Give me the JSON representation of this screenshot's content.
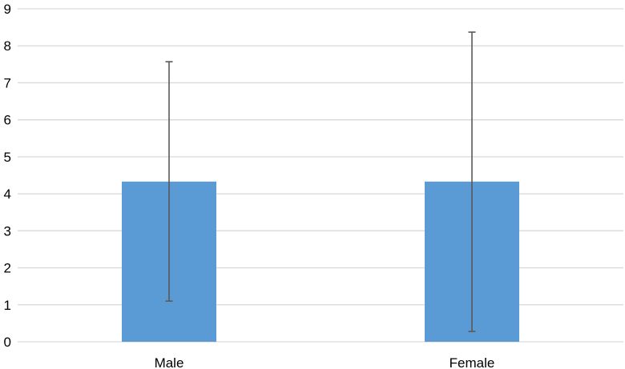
{
  "chart_data": {
    "type": "bar",
    "categories": [
      "Male",
      "Female"
    ],
    "series": [
      {
        "values": [
          4.33,
          4.33
        ],
        "error_low": [
          1.1,
          0.28
        ],
        "error_high": [
          7.57,
          8.37
        ],
        "color": "#5b9bd5"
      }
    ],
    "title": "",
    "xlabel": "",
    "ylabel": "",
    "ylim": [
      0,
      9
    ],
    "yticks": [
      "0",
      "1",
      "2",
      "3",
      "4",
      "5",
      "6",
      "7",
      "8",
      "9"
    ],
    "grid": true,
    "legend": "none",
    "colors": {
      "grid": "#d9d9d9",
      "error_bar": "#595959"
    }
  }
}
